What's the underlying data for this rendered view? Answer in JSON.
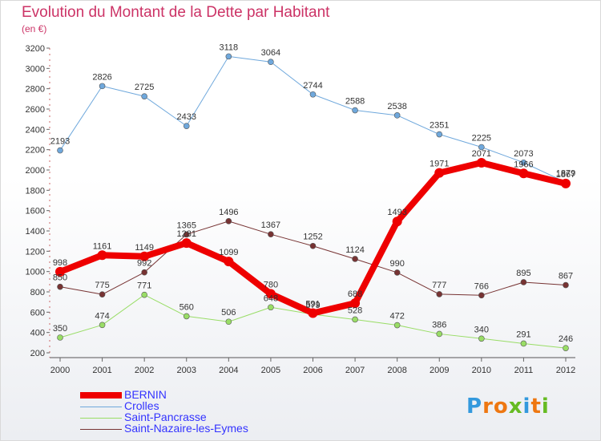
{
  "header": {
    "title": "Evolution du Montant de la Dette par Habitant",
    "subtitle": "(en €)"
  },
  "logo": {
    "text": "Proxiti",
    "colors": [
      "#3399dd",
      "#ee7711",
      "#ee7711",
      "#66bb22",
      "#3399dd",
      "#ee7711",
      "#66bb22"
    ]
  },
  "chart_data": {
    "type": "line",
    "x": [
      "2000",
      "2001",
      "2002",
      "2003",
      "2004",
      "2005",
      "2006",
      "2007",
      "2008",
      "2009",
      "2010",
      "2011",
      "2012"
    ],
    "ylim": [
      200,
      3200
    ],
    "yticks": [
      200,
      400,
      600,
      800,
      1000,
      1200,
      1400,
      1600,
      1800,
      2000,
      2200,
      2400,
      2600,
      2800,
      3000,
      3200
    ],
    "grid": false,
    "legend": "bottom-left",
    "series": [
      {
        "name": "BERNIN",
        "color": "#ee0000",
        "width": 8,
        "values": [
          998,
          1161,
          1149,
          1281,
          1099,
          780,
          591,
          688,
          1493,
          1971,
          2071,
          1966,
          1867
        ],
        "labels": [
          "998",
          "1161",
          "1149",
          "1281",
          "1099",
          "780",
          "591",
          "688",
          "1493",
          "1971",
          "2071",
          "1966",
          "1867"
        ]
      },
      {
        "name": "Crolles",
        "color": "#6fa8dc",
        "width": 1,
        "values": [
          2193,
          2826,
          2725,
          2433,
          3118,
          3064,
          2744,
          2588,
          2538,
          2351,
          2225,
          2073,
          1879
        ],
        "labels": [
          "2193",
          "2826",
          "2725",
          "2433",
          "3118",
          "3064",
          "2744",
          "2588",
          "2538",
          "2351",
          "2225",
          "2073",
          "1879"
        ]
      },
      {
        "name": "Saint-Pancrasse",
        "color": "#99dd66",
        "width": 1,
        "values": [
          350,
          474,
          771,
          560,
          506,
          648,
          579,
          528,
          472,
          386,
          340,
          291,
          246
        ],
        "labels": [
          "350",
          "474",
          "771",
          "560",
          "506",
          "648",
          "579",
          "528",
          "472",
          "386",
          "340",
          "291",
          "246"
        ]
      },
      {
        "name": "Saint-Nazaire-les-Eymes",
        "color": "#773333",
        "width": 1,
        "values": [
          850,
          775,
          992,
          1365,
          1496,
          1367,
          1252,
          1124,
          990,
          777,
          766,
          895,
          867
        ],
        "labels": [
          "850",
          "775",
          "992",
          "1365",
          "1496",
          "1367",
          "1252",
          "1124",
          "990",
          "777",
          "766",
          "895",
          "867"
        ]
      }
    ]
  }
}
